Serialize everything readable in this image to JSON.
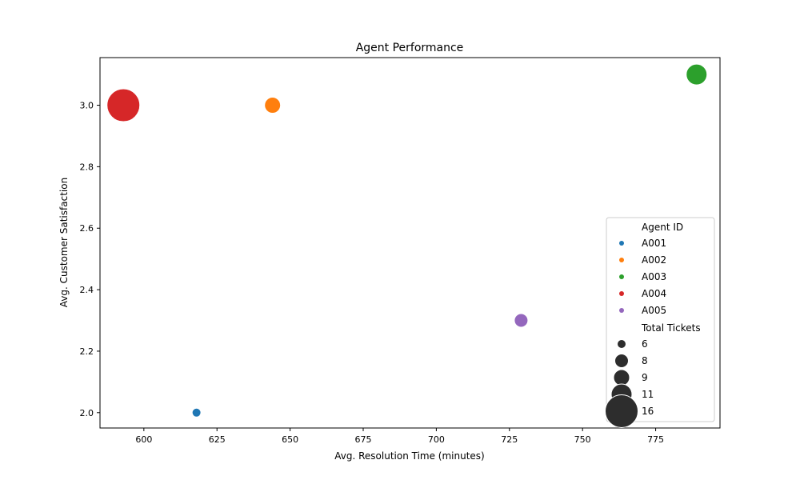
{
  "chart_data": {
    "type": "scatter",
    "title": "Agent Performance",
    "xlabel": "Avg. Resolution Time (minutes)",
    "ylabel": "Avg. Customer Satisfaction",
    "xlim": [
      585,
      797
    ],
    "ylim": [
      1.95,
      3.155
    ],
    "xticks": [
      "600",
      "625",
      "650",
      "675",
      "700",
      "725",
      "750",
      "775"
    ],
    "yticks": [
      "2.0",
      "2.2",
      "2.4",
      "2.6",
      "2.8",
      "3.0"
    ],
    "grid": false,
    "legend_position": "lower-right",
    "hue_legend_title": "Agent ID",
    "size_legend_title": "Total Tickets",
    "points": [
      {
        "agent": "A001",
        "x": 618,
        "y": 2.0,
        "tickets": 6,
        "color": "#1f77b4"
      },
      {
        "agent": "A002",
        "x": 644,
        "y": 3.0,
        "tickets": 9,
        "color": "#ff7f0e"
      },
      {
        "agent": "A003",
        "x": 789,
        "y": 3.1,
        "tickets": 11,
        "color": "#2ca02c"
      },
      {
        "agent": "A004",
        "x": 593,
        "y": 3.0,
        "tickets": 16,
        "color": "#d62728"
      },
      {
        "agent": "A005",
        "x": 729,
        "y": 2.3,
        "tickets": 8,
        "color": "#9467bd"
      }
    ],
    "size_legend": [
      {
        "label": "6",
        "value": 6
      },
      {
        "label": "8",
        "value": 8
      },
      {
        "label": "9",
        "value": 9
      },
      {
        "label": "11",
        "value": 11
      },
      {
        "label": "16",
        "value": 16
      }
    ]
  }
}
